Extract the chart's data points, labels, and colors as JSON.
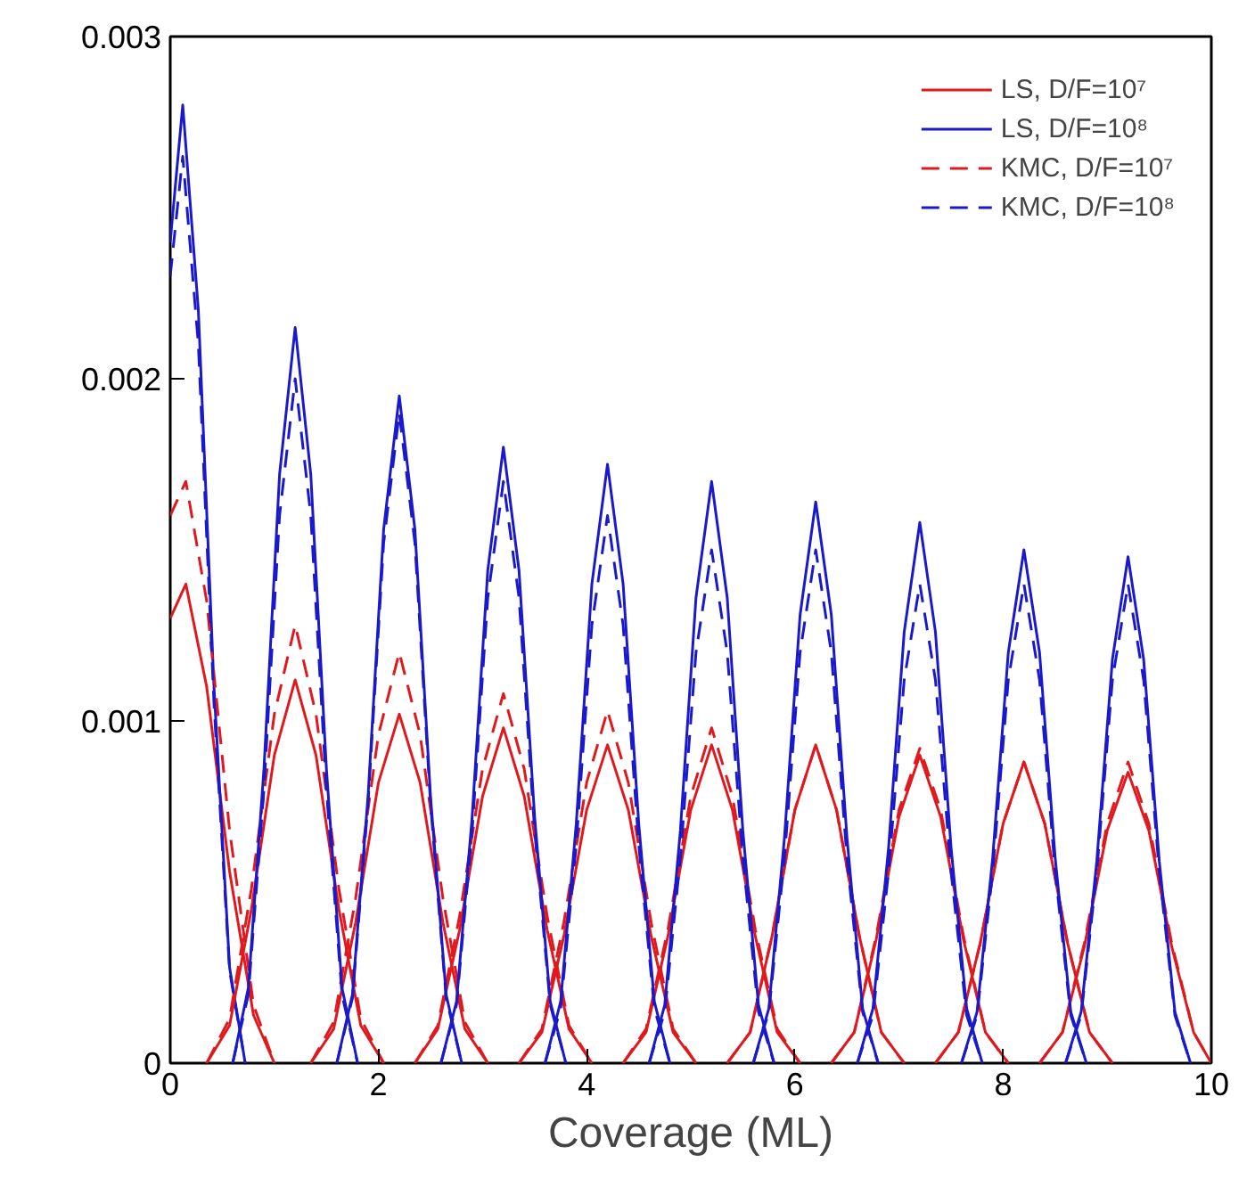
{
  "chart_data": {
    "type": "line",
    "xlabel": "Coverage (ML)",
    "xlim": [
      0,
      10
    ],
    "xticks": [
      0,
      2,
      4,
      6,
      8,
      10
    ],
    "ylim": [
      0,
      0.003
    ],
    "yticks": [
      0,
      0.001,
      0.002,
      0.003
    ],
    "grid": false,
    "legend": "top right",
    "marker": "none",
    "series": [
      {
        "name": "LS, D/F=10⁷",
        "color": "#e0191f",
        "line_style": "solid",
        "x": [
          0,
          0.15,
          0.35,
          0.57,
          0.8,
          1.0
        ],
        "values": [
          0.0013,
          0.0014,
          0.0011,
          0.00056,
          0.00014,
          0
        ]
      },
      {
        "name": "LS, D/F=10⁸",
        "color": "#1a1acc",
        "line_style": "solid",
        "x": [
          0,
          0.12,
          0.27,
          0.42,
          0.57,
          0.72
        ],
        "values": [
          0.0024,
          0.0028,
          0.0022,
          0.0011,
          0.00028,
          0
        ]
      },
      {
        "name": "KMC, D/F=10⁷",
        "color": "#e0191f",
        "line_style": "dashed",
        "x": [
          0,
          0.15,
          0.35,
          0.57,
          0.8,
          1.0
        ],
        "values": [
          0.0016,
          0.0017,
          0.00135,
          0.00068,
          0.00017,
          0
        ]
      },
      {
        "name": "KMC, D/F=10⁸",
        "color": "#1a1acc",
        "line_style": "dashed",
        "x": [
          0,
          0.12,
          0.27,
          0.42,
          0.57,
          0.72
        ],
        "values": [
          0.0023,
          0.00265,
          0.0021,
          0.00105,
          0.00027,
          0
        ]
      },
      {
        "color": "#e0191f",
        "line_style": "solid",
        "x": [
          0.35,
          0.57,
          0.78,
          1.0,
          1.2,
          1.4,
          1.62,
          1.83,
          2.05
        ],
        "values": [
          0,
          0.00011,
          0.00045,
          0.0009,
          0.00112,
          0.0009,
          0.00045,
          0.00011,
          0
        ]
      },
      {
        "color": "#e0191f",
        "line_style": "solid",
        "x": [
          1.35,
          1.57,
          1.78,
          2.0,
          2.2,
          2.4,
          2.62,
          2.83,
          3.05
        ],
        "values": [
          0,
          0.0001,
          0.00041,
          0.00082,
          0.00102,
          0.00082,
          0.00041,
          0.0001,
          0
        ]
      },
      {
        "color": "#e0191f",
        "line_style": "solid",
        "x": [
          2.35,
          2.57,
          2.78,
          3.0,
          3.2,
          3.4,
          3.62,
          3.83,
          4.05
        ],
        "values": [
          0,
          0.0001,
          0.00039,
          0.00078,
          0.00098,
          0.00078,
          0.00039,
          0.0001,
          0
        ]
      },
      {
        "color": "#e0191f",
        "line_style": "solid",
        "x": [
          3.35,
          3.57,
          3.78,
          4.0,
          4.2,
          4.4,
          4.62,
          4.83,
          5.05
        ],
        "values": [
          0,
          9e-05,
          0.00037,
          0.00074,
          0.00093,
          0.00074,
          0.00037,
          9e-05,
          0
        ]
      },
      {
        "color": "#e0191f",
        "line_style": "solid",
        "x": [
          4.35,
          4.57,
          4.78,
          5.0,
          5.2,
          5.4,
          5.62,
          5.83,
          6.05
        ],
        "values": [
          0,
          9e-05,
          0.00037,
          0.00074,
          0.00093,
          0.00074,
          0.00037,
          9e-05,
          0
        ]
      },
      {
        "color": "#e0191f",
        "line_style": "solid",
        "x": [
          5.35,
          5.57,
          5.78,
          6.0,
          6.2,
          6.4,
          6.62,
          6.83,
          7.05
        ],
        "values": [
          0,
          9e-05,
          0.00037,
          0.00074,
          0.00093,
          0.00074,
          0.00037,
          9e-05,
          0
        ]
      },
      {
        "color": "#e0191f",
        "line_style": "solid",
        "x": [
          6.35,
          6.57,
          6.78,
          7.0,
          7.2,
          7.4,
          7.62,
          7.83,
          8.05
        ],
        "values": [
          0,
          9e-05,
          0.00036,
          0.00072,
          0.0009,
          0.00072,
          0.00036,
          9e-05,
          0
        ]
      },
      {
        "color": "#e0191f",
        "line_style": "solid",
        "x": [
          7.35,
          7.57,
          7.78,
          8.0,
          8.2,
          8.4,
          8.62,
          8.83,
          9.05
        ],
        "values": [
          0,
          9e-05,
          0.00035,
          0.0007,
          0.00088,
          0.0007,
          0.00035,
          9e-05,
          0
        ]
      },
      {
        "color": "#e0191f",
        "line_style": "solid",
        "x": [
          8.35,
          8.57,
          8.78,
          9.0,
          9.2,
          9.4,
          9.62,
          9.83,
          10.0
        ],
        "values": [
          0,
          9e-05,
          0.00034,
          0.00068,
          0.00085,
          0.00068,
          0.00034,
          9e-05,
          0
        ]
      },
      {
        "color": "#e0191f",
        "line_style": "dashed",
        "x": [
          0.35,
          0.57,
          0.78,
          1.0,
          1.2,
          1.4,
          1.62,
          1.83,
          2.05
        ],
        "values": [
          0,
          0.00013,
          0.00051,
          0.00102,
          0.00128,
          0.00102,
          0.00051,
          0.00013,
          0
        ]
      },
      {
        "color": "#e0191f",
        "line_style": "dashed",
        "x": [
          1.35,
          1.57,
          1.78,
          2.0,
          2.2,
          2.4,
          2.62,
          2.83,
          3.05
        ],
        "values": [
          0,
          0.00012,
          0.00048,
          0.00096,
          0.0012,
          0.00096,
          0.00048,
          0.00012,
          0
        ]
      },
      {
        "color": "#e0191f",
        "line_style": "dashed",
        "x": [
          2.35,
          2.57,
          2.78,
          3.0,
          3.2,
          3.4,
          3.62,
          3.83,
          4.05
        ],
        "values": [
          0,
          0.00011,
          0.00043,
          0.00086,
          0.00108,
          0.00086,
          0.00043,
          0.00011,
          0
        ]
      },
      {
        "color": "#e0191f",
        "line_style": "dashed",
        "x": [
          3.35,
          3.57,
          3.78,
          4.0,
          4.2,
          4.4,
          4.62,
          4.83,
          5.05
        ],
        "values": [
          0,
          0.0001,
          0.00041,
          0.00082,
          0.00103,
          0.00082,
          0.00041,
          0.0001,
          0
        ]
      },
      {
        "color": "#e0191f",
        "line_style": "dashed",
        "x": [
          4.35,
          4.57,
          4.78,
          5.0,
          5.2,
          5.4,
          5.62,
          5.83,
          6.05
        ],
        "values": [
          0,
          0.0001,
          0.00039,
          0.00078,
          0.00098,
          0.00078,
          0.00039,
          0.0001,
          0
        ]
      },
      {
        "color": "#e0191f",
        "line_style": "dashed",
        "x": [
          5.35,
          5.57,
          5.78,
          6.0,
          6.2,
          6.4,
          6.62,
          6.83,
          7.05
        ],
        "values": [
          0,
          9e-05,
          0.00037,
          0.00074,
          0.00093,
          0.00074,
          0.00037,
          9e-05,
          0
        ]
      },
      {
        "color": "#e0191f",
        "line_style": "dashed",
        "x": [
          6.35,
          6.57,
          6.78,
          7.0,
          7.2,
          7.4,
          7.62,
          7.83,
          8.05
        ],
        "values": [
          0,
          9e-05,
          0.00037,
          0.00074,
          0.00092,
          0.00074,
          0.00037,
          9e-05,
          0
        ]
      },
      {
        "color": "#e0191f",
        "line_style": "dashed",
        "x": [
          7.35,
          7.57,
          7.78,
          8.0,
          8.2,
          8.4,
          8.62,
          8.83,
          9.05
        ],
        "values": [
          0,
          9e-05,
          0.00035,
          0.0007,
          0.00088,
          0.0007,
          0.00035,
          9e-05,
          0
        ]
      },
      {
        "color": "#e0191f",
        "line_style": "dashed",
        "x": [
          8.35,
          8.57,
          8.78,
          9.0,
          9.2,
          9.4,
          9.62,
          9.83,
          10.0
        ],
        "values": [
          0,
          9e-05,
          0.00035,
          0.0007,
          0.00088,
          0.0007,
          0.00035,
          9e-05,
          0
        ]
      },
      {
        "color": "#1a1acc",
        "line_style": "solid",
        "x": [
          0.6,
          0.75,
          0.9,
          1.05,
          1.2,
          1.35,
          1.5,
          1.65,
          1.8
        ],
        "values": [
          0,
          0.00022,
          0.00086,
          0.00172,
          0.00215,
          0.00172,
          0.00086,
          0.00022,
          0
        ]
      },
      {
        "color": "#1a1acc",
        "line_style": "solid",
        "x": [
          1.6,
          1.75,
          1.9,
          2.05,
          2.2,
          2.35,
          2.5,
          2.65,
          2.8
        ],
        "values": [
          0,
          0.0002,
          0.00078,
          0.00156,
          0.00195,
          0.00156,
          0.00078,
          0.0002,
          0
        ]
      },
      {
        "color": "#1a1acc",
        "line_style": "solid",
        "x": [
          2.6,
          2.75,
          2.9,
          3.05,
          3.2,
          3.35,
          3.5,
          3.65,
          3.8
        ],
        "values": [
          0,
          0.00018,
          0.00072,
          0.00144,
          0.0018,
          0.00144,
          0.00072,
          0.00018,
          0
        ]
      },
      {
        "color": "#1a1acc",
        "line_style": "solid",
        "x": [
          3.6,
          3.75,
          3.9,
          4.05,
          4.2,
          4.35,
          4.5,
          4.65,
          4.8
        ],
        "values": [
          0,
          0.00018,
          0.0007,
          0.0014,
          0.00175,
          0.0014,
          0.0007,
          0.00018,
          0
        ]
      },
      {
        "color": "#1a1acc",
        "line_style": "solid",
        "x": [
          4.6,
          4.75,
          4.9,
          5.05,
          5.2,
          5.35,
          5.5,
          5.65,
          5.8
        ],
        "values": [
          0,
          0.00017,
          0.00068,
          0.00136,
          0.0017,
          0.00136,
          0.00068,
          0.00017,
          0
        ]
      },
      {
        "color": "#1a1acc",
        "line_style": "solid",
        "x": [
          5.6,
          5.75,
          5.9,
          6.05,
          6.2,
          6.35,
          6.5,
          6.65,
          6.8
        ],
        "values": [
          0,
          0.00016,
          0.00066,
          0.00131,
          0.00164,
          0.00131,
          0.00066,
          0.00016,
          0
        ]
      },
      {
        "color": "#1a1acc",
        "line_style": "solid",
        "x": [
          6.6,
          6.75,
          6.9,
          7.05,
          7.2,
          7.35,
          7.5,
          7.65,
          7.8
        ],
        "values": [
          0,
          0.00016,
          0.00063,
          0.00126,
          0.00158,
          0.00126,
          0.00063,
          0.00016,
          0
        ]
      },
      {
        "color": "#1a1acc",
        "line_style": "solid",
        "x": [
          7.6,
          7.75,
          7.9,
          8.05,
          8.2,
          8.35,
          8.5,
          8.65,
          8.8
        ],
        "values": [
          0,
          0.00015,
          0.0006,
          0.0012,
          0.0015,
          0.0012,
          0.0006,
          0.00015,
          0
        ]
      },
      {
        "color": "#1a1acc",
        "line_style": "solid",
        "x": [
          8.6,
          8.75,
          8.9,
          9.05,
          9.2,
          9.35,
          9.5,
          9.65,
          9.8
        ],
        "values": [
          0,
          0.00015,
          0.00059,
          0.00118,
          0.00148,
          0.00118,
          0.00059,
          0.00015,
          0
        ]
      },
      {
        "color": "#1a1acc",
        "line_style": "dashed",
        "x": [
          0.6,
          0.75,
          0.9,
          1.05,
          1.2,
          1.35,
          1.5,
          1.65,
          1.8
        ],
        "values": [
          0,
          0.0002,
          0.0008,
          0.0016,
          0.002,
          0.0016,
          0.0008,
          0.0002,
          0
        ]
      },
      {
        "color": "#1a1acc",
        "line_style": "dashed",
        "x": [
          1.6,
          1.75,
          1.9,
          2.05,
          2.2,
          2.35,
          2.5,
          2.65,
          2.8
        ],
        "values": [
          0,
          0.00019,
          0.00076,
          0.00152,
          0.0019,
          0.00152,
          0.00076,
          0.00019,
          0
        ]
      },
      {
        "color": "#1a1acc",
        "line_style": "dashed",
        "x": [
          2.6,
          2.75,
          2.9,
          3.05,
          3.2,
          3.35,
          3.5,
          3.65,
          3.8
        ],
        "values": [
          0,
          0.00017,
          0.00068,
          0.00136,
          0.0017,
          0.00136,
          0.00068,
          0.00017,
          0
        ]
      },
      {
        "color": "#1a1acc",
        "line_style": "dashed",
        "x": [
          3.6,
          3.75,
          3.9,
          4.05,
          4.2,
          4.35,
          4.5,
          4.65,
          4.8
        ],
        "values": [
          0,
          0.00016,
          0.00064,
          0.00128,
          0.0016,
          0.00128,
          0.00064,
          0.00016,
          0
        ]
      },
      {
        "color": "#1a1acc",
        "line_style": "dashed",
        "x": [
          4.6,
          4.75,
          4.9,
          5.05,
          5.2,
          5.35,
          5.5,
          5.65,
          5.8
        ],
        "values": [
          0,
          0.00015,
          0.0006,
          0.0012,
          0.0015,
          0.0012,
          0.0006,
          0.00015,
          0
        ]
      },
      {
        "color": "#1a1acc",
        "line_style": "dashed",
        "x": [
          5.6,
          5.75,
          5.9,
          6.05,
          6.2,
          6.35,
          6.5,
          6.65,
          6.8
        ],
        "values": [
          0,
          0.00015,
          0.0006,
          0.0012,
          0.0015,
          0.0012,
          0.0006,
          0.00015,
          0
        ]
      },
      {
        "color": "#1a1acc",
        "line_style": "dashed",
        "x": [
          6.6,
          6.75,
          6.9,
          7.05,
          7.2,
          7.35,
          7.5,
          7.65,
          7.8
        ],
        "values": [
          0,
          0.00014,
          0.00056,
          0.00112,
          0.0014,
          0.00112,
          0.00056,
          0.00014,
          0
        ]
      },
      {
        "color": "#1a1acc",
        "line_style": "dashed",
        "x": [
          7.6,
          7.75,
          7.9,
          8.05,
          8.2,
          8.35,
          8.5,
          8.65,
          8.8
        ],
        "values": [
          0,
          0.00014,
          0.00056,
          0.00112,
          0.0014,
          0.00112,
          0.00056,
          0.00014,
          0
        ]
      },
      {
        "color": "#1a1acc",
        "line_style": "dashed",
        "x": [
          8.6,
          8.75,
          8.9,
          9.05,
          9.2,
          9.35,
          9.5,
          9.65,
          9.8
        ],
        "values": [
          0,
          0.00014,
          0.00056,
          0.00112,
          0.0014,
          0.00112,
          0.00056,
          0.00014,
          0
        ]
      }
    ]
  }
}
